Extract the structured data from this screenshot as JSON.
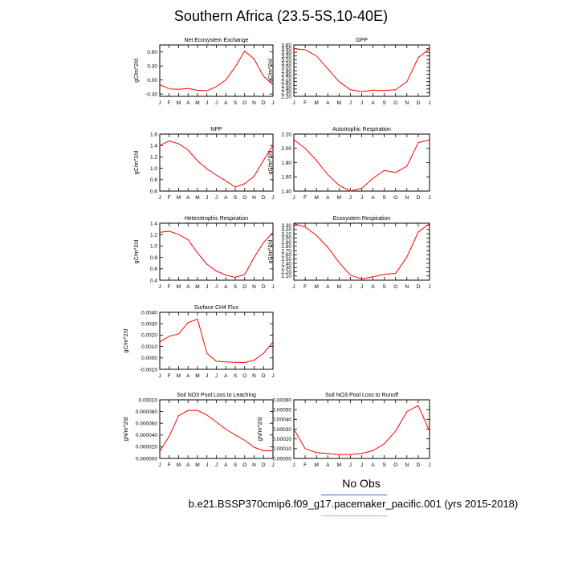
{
  "title": "Southern Africa (23.5-5S,10-40E)",
  "legend": {
    "label": "No Obs"
  },
  "caption": "b.e21.BSSP370cmip6.f09_g17.pacemaker_pacific.001 (yrs 2015-2018)",
  "colors": {
    "line": "#ff0000",
    "axis": "#000000",
    "legend_blue": "#3a6ed8",
    "legend_red": "#ff9999"
  },
  "chart_data": [
    {
      "type": "line",
      "title": "Net Ecosystem Exchange",
      "ylabel": "gC/m^2/d",
      "x": [
        "J",
        "F",
        "M",
        "A",
        "M",
        "J",
        "J",
        "A",
        "S",
        "O",
        "N",
        "D",
        "J"
      ],
      "ylim": [
        -0.35,
        0.75
      ],
      "yticks": [
        -0.3,
        0.0,
        0.3,
        0.6
      ],
      "yticklabels": [
        "-0.30",
        "0.00",
        "0.30",
        "0.60"
      ],
      "series": [
        {
          "values": [
            -0.1,
            -0.19,
            -0.2,
            -0.18,
            -0.22,
            -0.23,
            -0.14,
            0.0,
            0.28,
            0.62,
            0.45,
            0.08,
            -0.1
          ]
        }
      ]
    },
    {
      "type": "line",
      "title": "GPP",
      "ylabel": "gC/m^2/d",
      "x": [
        "J",
        "F",
        "M",
        "A",
        "M",
        "J",
        "J",
        "A",
        "S",
        "O",
        "N",
        "D",
        "J"
      ],
      "ylim": [
        2.2,
        3.6
      ],
      "yticks": [
        2.2,
        2.3,
        2.4,
        2.5,
        2.6,
        2.7,
        2.8,
        2.9,
        3.0,
        3.1,
        3.2,
        3.3,
        3.4,
        3.5,
        3.6
      ],
      "yticklabels": [
        "2.20",
        "2.30",
        "2.40",
        "2.50",
        "2.60",
        "2.70",
        "2.80",
        "2.90",
        "3.00",
        "3.10",
        "3.20",
        "3.30",
        "3.40",
        "3.50",
        "3.60"
      ],
      "series": [
        {
          "values": [
            3.5,
            3.47,
            3.3,
            2.95,
            2.6,
            2.38,
            2.33,
            2.37,
            2.36,
            2.38,
            2.6,
            3.25,
            3.5
          ]
        }
      ]
    },
    {
      "type": "line",
      "title": "NPP",
      "ylabel": "gC/m^2/d",
      "x": [
        "J",
        "F",
        "M",
        "A",
        "M",
        "J",
        "J",
        "A",
        "S",
        "O",
        "N",
        "D",
        "J"
      ],
      "ylim": [
        0.6,
        1.6
      ],
      "yticks": [
        0.6,
        0.8,
        1.0,
        1.2,
        1.4,
        1.6
      ],
      "yticklabels": [
        "0.6",
        "0.8",
        "1.0",
        "1.2",
        "1.4",
        "1.6"
      ],
      "series": [
        {
          "values": [
            1.4,
            1.48,
            1.43,
            1.32,
            1.13,
            0.99,
            0.88,
            0.78,
            0.67,
            0.73,
            0.86,
            1.14,
            1.4
          ]
        }
      ]
    },
    {
      "type": "line",
      "title": "Autotrophic Respiration",
      "ylabel": "gC/m^2/d",
      "x": [
        "J",
        "F",
        "M",
        "A",
        "M",
        "J",
        "J",
        "A",
        "S",
        "O",
        "N",
        "D",
        "J"
      ],
      "ylim": [
        1.4,
        2.2
      ],
      "yticks": [
        1.4,
        1.6,
        1.8,
        2.0,
        2.2
      ],
      "yticklabels": [
        "1.40",
        "1.60",
        "1.80",
        "2.00",
        "2.20"
      ],
      "series": [
        {
          "values": [
            2.12,
            2.0,
            1.83,
            1.63,
            1.48,
            1.4,
            1.44,
            1.58,
            1.69,
            1.66,
            1.75,
            2.08,
            2.12
          ]
        }
      ]
    },
    {
      "type": "line",
      "title": "Heterotrophic Respiration",
      "ylabel": "gC/m^2/d",
      "x": [
        "J",
        "F",
        "M",
        "A",
        "M",
        "J",
        "J",
        "A",
        "S",
        "O",
        "N",
        "D",
        "J"
      ],
      "ylim": [
        0.4,
        1.4
      ],
      "yticks": [
        0.4,
        0.6,
        0.8,
        1.0,
        1.2,
        1.4
      ],
      "yticklabels": [
        "0.4",
        "0.6",
        "0.8",
        "1.0",
        "1.2",
        "1.4"
      ],
      "series": [
        {
          "values": [
            1.24,
            1.26,
            1.2,
            1.11,
            0.88,
            0.68,
            0.56,
            0.49,
            0.45,
            0.5,
            0.8,
            1.06,
            1.24
          ]
        }
      ]
    },
    {
      "type": "line",
      "title": "Ecosystem Respiration",
      "ylabel": "gC/m^2/d",
      "x": [
        "J",
        "F",
        "M",
        "A",
        "M",
        "J",
        "J",
        "A",
        "S",
        "O",
        "N",
        "D",
        "J"
      ],
      "ylim": [
        2.0,
        3.35
      ],
      "yticks": [
        2.1,
        2.2,
        2.3,
        2.4,
        2.5,
        2.6,
        2.7,
        2.8,
        2.9,
        3.0,
        3.1,
        3.2,
        3.3
      ],
      "yticklabels": [
        "2.10",
        "2.20",
        "2.30",
        "2.40",
        "2.50",
        "2.60",
        "2.70",
        "2.80",
        "2.90",
        "3.00",
        "3.10",
        "3.20",
        "3.30"
      ],
      "series": [
        {
          "values": [
            3.34,
            3.26,
            3.06,
            2.78,
            2.42,
            2.12,
            2.03,
            2.08,
            2.14,
            2.16,
            2.55,
            3.14,
            3.34
          ]
        }
      ]
    },
    {
      "type": "line",
      "title": "Surface CH4 Flux",
      "ylabel": "gC/m^2/d",
      "x": [
        "J",
        "F",
        "M",
        "A",
        "M",
        "J",
        "J",
        "A",
        "S",
        "O",
        "N",
        "D",
        "J"
      ],
      "ylim": [
        -0.001,
        0.004
      ],
      "yticks": [
        -0.001,
        0.0,
        0.001,
        0.002,
        0.003,
        0.004
      ],
      "yticklabels": [
        "-0.0010",
        "0.0000",
        "0.0010",
        "0.0020",
        "0.0030",
        "0.0040"
      ],
      "series": [
        {
          "values": [
            0.0014,
            0.0019,
            0.0021,
            0.0031,
            0.0034,
            0.0004,
            -0.0003,
            -0.00035,
            -0.00038,
            -0.0004,
            -0.0002,
            0.0004,
            0.0014
          ]
        }
      ]
    },
    {
      "type": "line",
      "title": "Soil NO3 Pool Loss to Leaching",
      "ylabel": "gN/m^2/d",
      "x": [
        "J",
        "F",
        "M",
        "A",
        "M",
        "J",
        "J",
        "A",
        "S",
        "O",
        "N",
        "D",
        "J"
      ],
      "ylim": [
        0.0,
        0.0001
      ],
      "yticks": [
        0.0,
        2e-05,
        4e-05,
        6e-05,
        8e-05,
        0.0001
      ],
      "yticklabels": [
        "0.000000",
        "0.000020",
        "0.000040",
        "0.000060",
        "0.000080",
        "0.00010"
      ],
      "series": [
        {
          "values": [
            1.2e-05,
            3.8e-05,
            7.3e-05,
            8.2e-05,
            8.2e-05,
            7.4e-05,
            6.2e-05,
            5e-05,
            4e-05,
            3.1e-05,
            1.9e-05,
            1.3e-05,
            1.3e-05
          ]
        }
      ]
    },
    {
      "type": "line",
      "title": "Soil NO3 Pool Loss to Runoff",
      "ylabel": "gN/m^2/d",
      "x": [
        "J",
        "F",
        "M",
        "A",
        "M",
        "J",
        "J",
        "A",
        "S",
        "O",
        "N",
        "D",
        "J"
      ],
      "ylim": [
        0.0,
        0.0006
      ],
      "yticks": [
        0.0,
        0.0001,
        0.0002,
        0.0003,
        0.0004,
        0.0005,
        0.0006
      ],
      "yticklabels": [
        "0.00000",
        "0.00010",
        "0.00020",
        "0.00030",
        "0.00040",
        "0.00050",
        "0.00060"
      ],
      "series": [
        {
          "values": [
            0.0003,
            0.0001,
            6e-05,
            5e-05,
            4e-05,
            4e-05,
            5e-05,
            8e-05,
            0.00015,
            0.00028,
            0.00048,
            0.00054,
            0.00028
          ]
        }
      ]
    }
  ]
}
